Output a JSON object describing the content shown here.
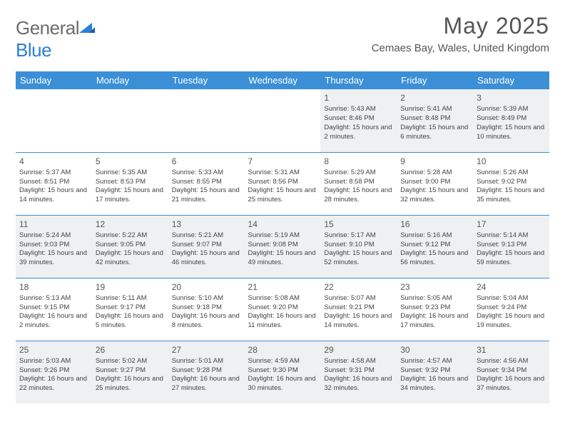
{
  "logo": {
    "text1": "General",
    "text2": "Blue"
  },
  "title": "May 2025",
  "location": "Cemaes Bay, Wales, United Kingdom",
  "colors": {
    "header_bg": "#3b8fd6",
    "header_text": "#ffffff",
    "border": "#3b8fd6",
    "shaded_bg": "#eef0f2",
    "body_text": "#444444",
    "title_text": "#555555",
    "logo_gray": "#6b6b6b",
    "logo_blue": "#2b7fd6"
  },
  "weekdays": [
    "Sunday",
    "Monday",
    "Tuesday",
    "Wednesday",
    "Thursday",
    "Friday",
    "Saturday"
  ],
  "weeks": [
    [
      null,
      null,
      null,
      null,
      {
        "n": "1",
        "sr": "5:43 AM",
        "ss": "8:46 PM",
        "dl": "15 hours and 2 minutes."
      },
      {
        "n": "2",
        "sr": "5:41 AM",
        "ss": "8:48 PM",
        "dl": "15 hours and 6 minutes."
      },
      {
        "n": "3",
        "sr": "5:39 AM",
        "ss": "8:49 PM",
        "dl": "15 hours and 10 minutes."
      }
    ],
    [
      {
        "n": "4",
        "sr": "5:37 AM",
        "ss": "8:51 PM",
        "dl": "15 hours and 14 minutes."
      },
      {
        "n": "5",
        "sr": "5:35 AM",
        "ss": "8:53 PM",
        "dl": "15 hours and 17 minutes."
      },
      {
        "n": "6",
        "sr": "5:33 AM",
        "ss": "8:55 PM",
        "dl": "15 hours and 21 minutes."
      },
      {
        "n": "7",
        "sr": "5:31 AM",
        "ss": "8:56 PM",
        "dl": "15 hours and 25 minutes."
      },
      {
        "n": "8",
        "sr": "5:29 AM",
        "ss": "8:58 PM",
        "dl": "15 hours and 28 minutes."
      },
      {
        "n": "9",
        "sr": "5:28 AM",
        "ss": "9:00 PM",
        "dl": "15 hours and 32 minutes."
      },
      {
        "n": "10",
        "sr": "5:26 AM",
        "ss": "9:02 PM",
        "dl": "15 hours and 35 minutes."
      }
    ],
    [
      {
        "n": "11",
        "sr": "5:24 AM",
        "ss": "9:03 PM",
        "dl": "15 hours and 39 minutes."
      },
      {
        "n": "12",
        "sr": "5:22 AM",
        "ss": "9:05 PM",
        "dl": "15 hours and 42 minutes."
      },
      {
        "n": "13",
        "sr": "5:21 AM",
        "ss": "9:07 PM",
        "dl": "15 hours and 46 minutes."
      },
      {
        "n": "14",
        "sr": "5:19 AM",
        "ss": "9:08 PM",
        "dl": "15 hours and 49 minutes."
      },
      {
        "n": "15",
        "sr": "5:17 AM",
        "ss": "9:10 PM",
        "dl": "15 hours and 52 minutes."
      },
      {
        "n": "16",
        "sr": "5:16 AM",
        "ss": "9:12 PM",
        "dl": "15 hours and 56 minutes."
      },
      {
        "n": "17",
        "sr": "5:14 AM",
        "ss": "9:13 PM",
        "dl": "15 hours and 59 minutes."
      }
    ],
    [
      {
        "n": "18",
        "sr": "5:13 AM",
        "ss": "9:15 PM",
        "dl": "16 hours and 2 minutes."
      },
      {
        "n": "19",
        "sr": "5:11 AM",
        "ss": "9:17 PM",
        "dl": "16 hours and 5 minutes."
      },
      {
        "n": "20",
        "sr": "5:10 AM",
        "ss": "9:18 PM",
        "dl": "16 hours and 8 minutes."
      },
      {
        "n": "21",
        "sr": "5:08 AM",
        "ss": "9:20 PM",
        "dl": "16 hours and 11 minutes."
      },
      {
        "n": "22",
        "sr": "5:07 AM",
        "ss": "9:21 PM",
        "dl": "16 hours and 14 minutes."
      },
      {
        "n": "23",
        "sr": "5:05 AM",
        "ss": "9:23 PM",
        "dl": "16 hours and 17 minutes."
      },
      {
        "n": "24",
        "sr": "5:04 AM",
        "ss": "9:24 PM",
        "dl": "16 hours and 19 minutes."
      }
    ],
    [
      {
        "n": "25",
        "sr": "5:03 AM",
        "ss": "9:26 PM",
        "dl": "16 hours and 22 minutes."
      },
      {
        "n": "26",
        "sr": "5:02 AM",
        "ss": "9:27 PM",
        "dl": "16 hours and 25 minutes."
      },
      {
        "n": "27",
        "sr": "5:01 AM",
        "ss": "9:28 PM",
        "dl": "16 hours and 27 minutes."
      },
      {
        "n": "28",
        "sr": "4:59 AM",
        "ss": "9:30 PM",
        "dl": "16 hours and 30 minutes."
      },
      {
        "n": "29",
        "sr": "4:58 AM",
        "ss": "9:31 PM",
        "dl": "16 hours and 32 minutes."
      },
      {
        "n": "30",
        "sr": "4:57 AM",
        "ss": "9:32 PM",
        "dl": "16 hours and 34 minutes."
      },
      {
        "n": "31",
        "sr": "4:56 AM",
        "ss": "9:34 PM",
        "dl": "16 hours and 37 minutes."
      }
    ]
  ],
  "labels": {
    "sunrise": "Sunrise: ",
    "sunset": "Sunset: ",
    "daylight": "Daylight: "
  }
}
